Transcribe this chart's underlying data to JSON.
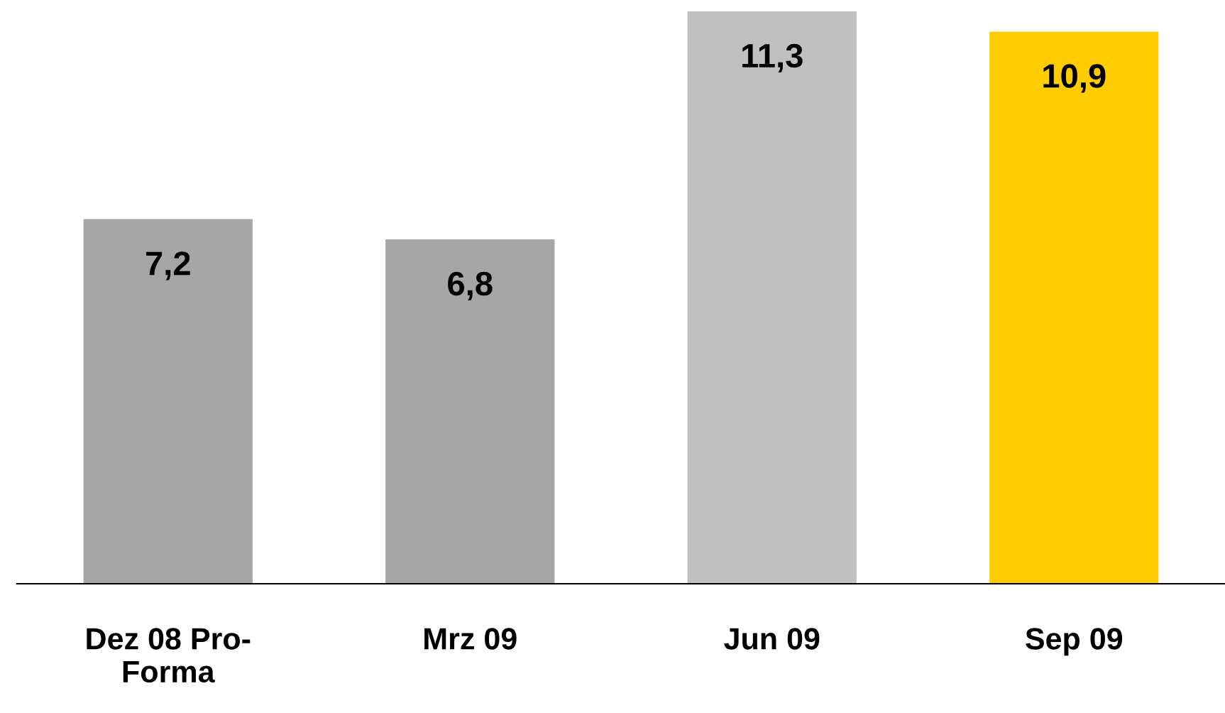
{
  "chart_data": {
    "type": "bar",
    "categories": [
      "Dez 08 Pro-\nForma",
      "Mrz 09",
      "Jun 09",
      "Sep 09"
    ],
    "values": [
      7.2,
      6.8,
      11.3,
      10.9
    ],
    "colors": [
      "#a6a6a6",
      "#a6a6a6",
      "#c0c0c0",
      "#ffcc00"
    ],
    "value_labels": [
      "7,2",
      "6,8",
      "11,3",
      "10,9"
    ],
    "grid": false
  }
}
